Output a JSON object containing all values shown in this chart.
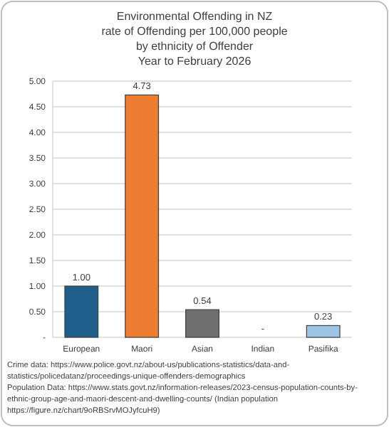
{
  "chart_data": {
    "type": "bar",
    "title": "Environmental Offending in NZ\nrate of Offending per 100,000 people\nby ethnicity of Offender\nYear to February 2026",
    "categories": [
      "European",
      "Maori",
      "Asian",
      "Indian",
      "Pasifika"
    ],
    "values": [
      1.0,
      4.73,
      0.54,
      0,
      0.23
    ],
    "colors": [
      "#1f5f8b",
      "#ed7d31",
      "#6f6f6f",
      "#a5a5a5",
      "#9dc3e6"
    ],
    "value_labels": [
      "1.00",
      "4.73",
      "0.54",
      "-",
      "0.23"
    ],
    "ylim": [
      0,
      5
    ],
    "yticks": [
      {
        "value": 0,
        "label": "-"
      },
      {
        "value": 0.5,
        "label": "0.50"
      },
      {
        "value": 1,
        "label": "1.00"
      },
      {
        "value": 1.5,
        "label": "1.50"
      },
      {
        "value": 2,
        "label": "2.00"
      },
      {
        "value": 2.5,
        "label": "2.50"
      },
      {
        "value": 3,
        "label": "3.00"
      },
      {
        "value": 3.5,
        "label": "3.50"
      },
      {
        "value": 4,
        "label": "4.00"
      },
      {
        "value": 4.5,
        "label": "4.50"
      },
      {
        "value": 5,
        "label": "5.00"
      }
    ],
    "grid": "y",
    "annotations": [
      "Crime data: https://www.police.govt.nz/about-us/publications-statistics/data-and-\nstatistics/policedatanz/proceedings-unique-offenders-demographics\nPopulation Data: https://www.stats.govt.nz/information-releases/2023-census-population-counts-by-\nethnic-group-age-and-maori-descent-and-dwelling-counts/ (Indian population\nhttps://figure.nz/chart/9oRBSrvMOJyfcuH9)"
    ]
  }
}
